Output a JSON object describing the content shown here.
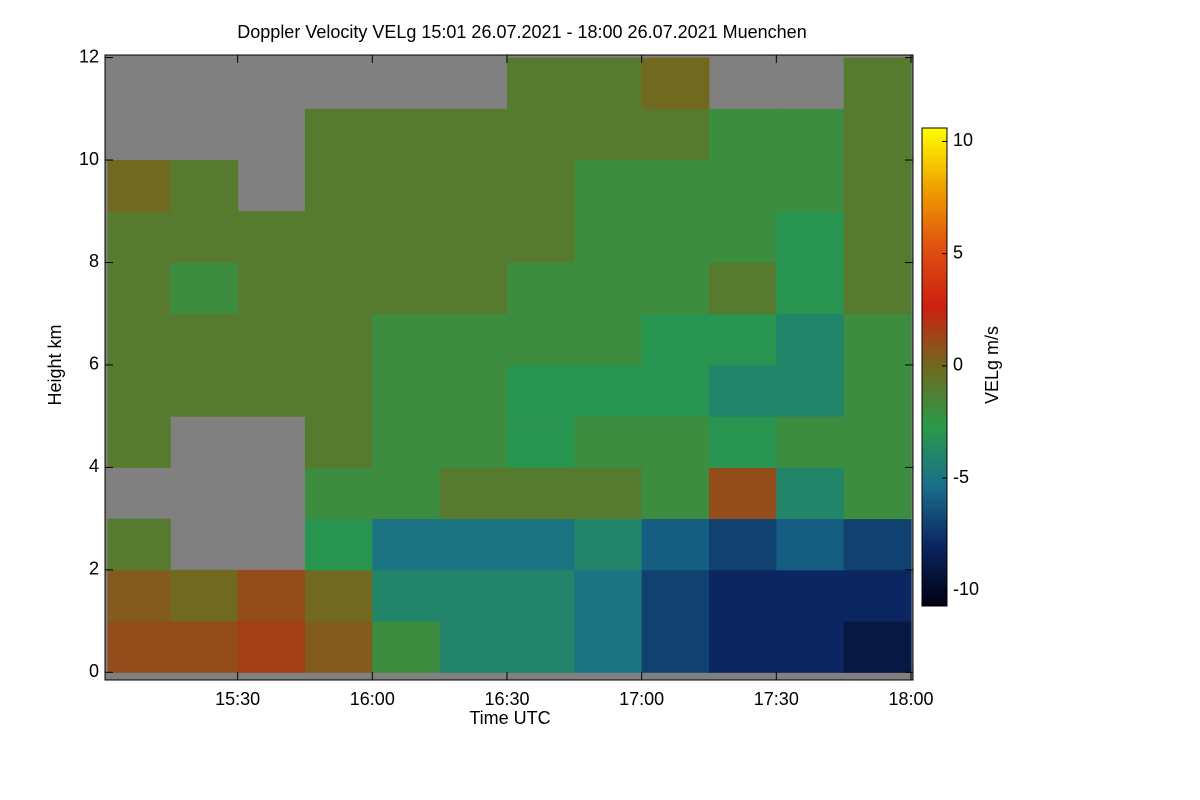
{
  "chart_data": {
    "type": "heatmap",
    "title": "Doppler Velocity VELg   15:01 26.07.2021 - 18:00 26.07.2021 Muenchen",
    "x_label": "Time UTC",
    "y_label": "Height km",
    "colorbar_label": "VELg m/s",
    "xlim": [
      15.0075,
      18.0075
    ],
    "xticks": [
      {
        "value": 15.5,
        "label": "15:30"
      },
      {
        "value": 16,
        "label": "16:00"
      },
      {
        "value": 16.5,
        "label": "16:30"
      },
      {
        "value": 17,
        "label": "17:00"
      },
      {
        "value": 17.5,
        "label": "17:30"
      },
      {
        "value": 18,
        "label": "18:00"
      }
    ],
    "ylim": [
      -0.15,
      12.05
    ],
    "yticks": [
      0,
      2,
      4,
      6,
      8,
      10,
      12
    ],
    "zlim": [
      -10.7,
      10.6
    ],
    "zticks": [
      10,
      5,
      0,
      -5,
      -10
    ],
    "colormap": [
      "#000010",
      "#0b2560",
      "#1a6e8c",
      "#2a9a4a",
      "#6f6a20",
      "#cc2010",
      "#e05010",
      "#f0a000",
      "#ffff00"
    ],
    "no_data_color": "#808080",
    "x_bins": [
      15.0167,
      15.25,
      15.5,
      15.75,
      16,
      16.25,
      16.5,
      16.75,
      17,
      17.25,
      17.5,
      17.75,
      18
    ],
    "y_bins": [
      0,
      1,
      2,
      3,
      4,
      5,
      6,
      7,
      8,
      9,
      10,
      11,
      12
    ],
    "z": [
      [
        1,
        1,
        1.5,
        0.5,
        -2,
        -4,
        -4,
        -5,
        -7,
        -8,
        -8,
        -9
      ],
      [
        0.5,
        0,
        1,
        0,
        -4,
        -4,
        -4,
        -5,
        -7,
        -8,
        -8,
        -8
      ],
      [
        -1,
        null,
        null,
        -3,
        -5,
        -5,
        -5,
        -4,
        -6,
        -7,
        -6,
        -7
      ],
      [
        null,
        null,
        null,
        -2,
        -2,
        -1,
        -1,
        -1,
        -2,
        1,
        -4,
        -2
      ],
      [
        -1,
        null,
        null,
        -1,
        -2,
        -2,
        -3,
        -2,
        -2,
        -3,
        -2,
        -2
      ],
      [
        -1,
        -1,
        -1,
        -1,
        -2,
        -2,
        -3,
        -3,
        -3,
        -4,
        -4,
        -2
      ],
      [
        -1,
        -1,
        -1,
        -1,
        -2,
        -2,
        -2,
        -2,
        -3,
        -3,
        -4,
        -2
      ],
      [
        -1,
        -2,
        -1,
        -1,
        -1,
        -1,
        -2,
        -2,
        -2,
        -1,
        -3,
        -1
      ],
      [
        -1,
        -1,
        -1,
        -1,
        -1,
        -1,
        -1,
        -2,
        -2,
        -2,
        -3,
        -1
      ],
      [
        0,
        -1,
        null,
        -1,
        -1,
        -1,
        -1,
        -2,
        -2,
        -2,
        -2,
        -1
      ],
      [
        null,
        null,
        null,
        -1,
        -1,
        -1,
        -1,
        -1,
        -1,
        -2,
        -2,
        -1
      ],
      [
        null,
        null,
        null,
        null,
        null,
        null,
        -1,
        -1,
        0,
        null,
        null,
        -1
      ]
    ]
  }
}
